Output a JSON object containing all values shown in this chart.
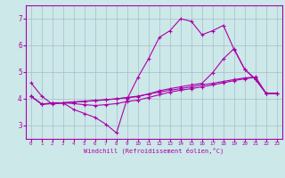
{
  "xlabel": "Windchill (Refroidissement éolien,°C)",
  "bg_color": "#cce8e8",
  "line_color": "#aa00aa",
  "grid_color": "#aabbcc",
  "x_data": [
    0,
    1,
    2,
    3,
    4,
    5,
    6,
    7,
    8,
    9,
    10,
    11,
    12,
    13,
    14,
    15,
    16,
    17,
    18,
    19,
    20,
    21,
    22,
    23
  ],
  "series1": [
    4.6,
    4.1,
    3.8,
    3.85,
    3.6,
    3.45,
    3.3,
    3.05,
    2.72,
    4.0,
    4.8,
    5.5,
    6.3,
    6.55,
    7.0,
    6.9,
    6.4,
    6.55,
    6.75,
    5.85,
    5.1,
    4.75,
    4.2,
    4.2
  ],
  "series2": [
    4.1,
    3.8,
    3.85,
    3.85,
    3.82,
    3.78,
    3.75,
    3.78,
    3.82,
    3.9,
    3.95,
    4.05,
    4.15,
    4.25,
    4.32,
    4.38,
    4.45,
    4.52,
    4.6,
    4.68,
    4.75,
    4.8,
    4.2,
    4.2
  ],
  "series3": [
    4.1,
    3.8,
    3.82,
    3.85,
    3.88,
    3.9,
    3.93,
    3.96,
    4.0,
    4.05,
    4.1,
    4.18,
    4.25,
    4.32,
    4.38,
    4.45,
    4.52,
    4.58,
    4.65,
    4.72,
    4.78,
    4.82,
    4.2,
    4.2
  ],
  "series4": [
    4.1,
    3.8,
    3.82,
    3.85,
    3.88,
    3.91,
    3.94,
    3.97,
    4.0,
    4.04,
    4.08,
    4.18,
    4.3,
    4.38,
    4.45,
    4.52,
    4.58,
    4.98,
    5.5,
    5.88,
    5.1,
    4.72,
    4.2,
    4.2
  ],
  "ylim": [
    2.5,
    7.5
  ],
  "xlim": [
    -0.5,
    23.5
  ],
  "yticks": [
    3,
    4,
    5,
    6,
    7
  ]
}
